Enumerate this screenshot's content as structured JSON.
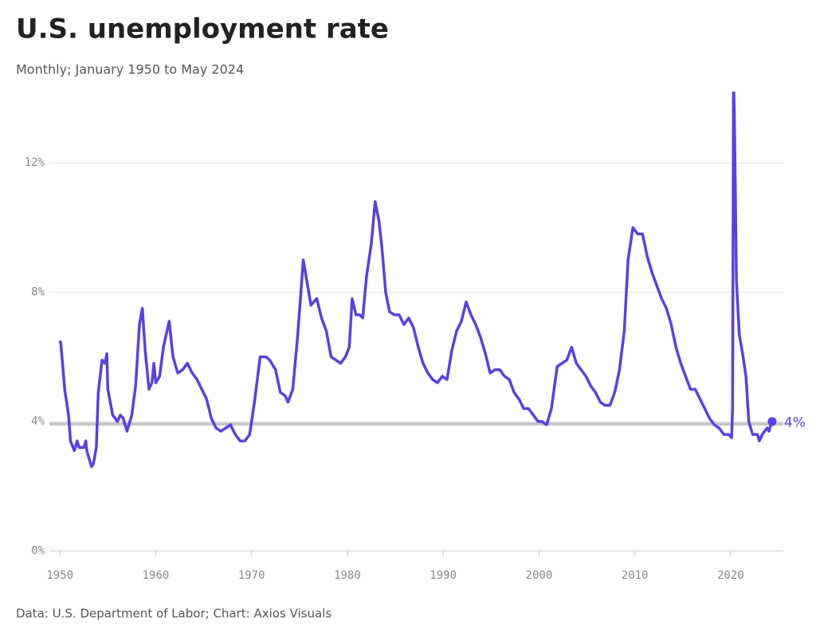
{
  "chart_data": {
    "type": "line",
    "title": "U.S. unemployment rate",
    "subtitle": "Monthly; January 1950 to May 2024",
    "source": "Data: U.S. Department of Labor; Chart: Axios Visuals",
    "end_label": "4%",
    "x": [
      1950.0,
      1950.1,
      1950.5,
      1950.9,
      1951.1,
      1951.5,
      1951.8,
      1952.0,
      1952.5,
      1952.7,
      1952.8,
      1953.0,
      1953.3,
      1953.5,
      1953.8,
      1954.0,
      1954.4,
      1954.7,
      1954.9,
      1955.0,
      1955.5,
      1956.0,
      1956.3,
      1956.6,
      1957.0,
      1957.5,
      1957.9,
      1958.3,
      1958.6,
      1958.9,
      1959.3,
      1959.6,
      1959.8,
      1960.0,
      1960.4,
      1960.8,
      1961.4,
      1961.8,
      1962.3,
      1962.8,
      1963.3,
      1963.8,
      1964.3,
      1964.8,
      1965.3,
      1965.8,
      1966.3,
      1966.8,
      1967.3,
      1967.8,
      1968.3,
      1968.8,
      1969.3,
      1969.8,
      1970.3,
      1970.9,
      1971.5,
      1971.9,
      1972.5,
      1973.0,
      1973.5,
      1973.8,
      1974.3,
      1974.8,
      1975.3,
      1975.4,
      1975.8,
      1976.2,
      1976.8,
      1977.3,
      1977.8,
      1978.3,
      1978.8,
      1979.3,
      1979.8,
      1980.2,
      1980.5,
      1980.9,
      1981.3,
      1981.6,
      1982.0,
      1982.5,
      1982.9,
      1983.3,
      1983.6,
      1984.0,
      1984.4,
      1984.9,
      1985.4,
      1985.9,
      1986.4,
      1986.9,
      1987.4,
      1987.9,
      1988.4,
      1988.9,
      1989.4,
      1989.9,
      1990.4,
      1990.9,
      1991.4,
      1991.9,
      1992.4,
      1992.9,
      1993.4,
      1993.9,
      1994.4,
      1994.9,
      1995.4,
      1995.9,
      1996.4,
      1996.9,
      1997.4,
      1997.9,
      1998.4,
      1998.9,
      1999.4,
      1999.9,
      2000.3,
      2000.8,
      2001.3,
      2001.9,
      2002.4,
      2002.9,
      2003.4,
      2003.9,
      2004.4,
      2004.9,
      2005.4,
      2005.9,
      2006.4,
      2006.9,
      2007.4,
      2007.9,
      2008.4,
      2008.9,
      2009.3,
      2009.8,
      2010.3,
      2010.8,
      2011.3,
      2011.8,
      2012.3,
      2012.8,
      2013.3,
      2013.8,
      2014.3,
      2014.8,
      2015.3,
      2015.8,
      2016.3,
      2016.8,
      2017.3,
      2017.8,
      2018.3,
      2018.8,
      2019.3,
      2019.8,
      2020.1,
      2020.2,
      2020.3,
      2020.4,
      2020.5,
      2020.6,
      2020.9,
      2021.3,
      2021.6,
      2021.9,
      2022.3,
      2022.8,
      2023.0,
      2023.3,
      2023.8,
      2024.0,
      2024.2,
      2024.33
    ],
    "series": [
      {
        "name": "Unemployment rate",
        "color": "#5b3ee6",
        "values": [
          6.5,
          6.4,
          5.0,
          4.2,
          3.4,
          3.1,
          3.4,
          3.2,
          3.2,
          3.4,
          3.1,
          2.9,
          2.6,
          2.7,
          3.2,
          4.9,
          5.9,
          5.8,
          6.1,
          5.0,
          4.2,
          4.0,
          4.2,
          4.1,
          3.7,
          4.2,
          5.1,
          7.0,
          7.5,
          6.2,
          5.0,
          5.2,
          5.8,
          5.2,
          5.4,
          6.3,
          7.1,
          6.0,
          5.5,
          5.6,
          5.8,
          5.5,
          5.3,
          5.0,
          4.7,
          4.1,
          3.8,
          3.7,
          3.8,
          3.9,
          3.6,
          3.4,
          3.4,
          3.6,
          4.6,
          6.0,
          6.0,
          5.9,
          5.6,
          4.9,
          4.8,
          4.6,
          5.0,
          6.6,
          8.6,
          9.0,
          8.3,
          7.6,
          7.8,
          7.2,
          6.8,
          6.0,
          5.9,
          5.8,
          6.0,
          6.3,
          7.8,
          7.3,
          7.3,
          7.2,
          8.5,
          9.5,
          10.8,
          10.2,
          9.4,
          8.0,
          7.4,
          7.3,
          7.3,
          7.0,
          7.2,
          6.9,
          6.3,
          5.8,
          5.5,
          5.3,
          5.2,
          5.4,
          5.3,
          6.2,
          6.8,
          7.1,
          7.7,
          7.3,
          7.0,
          6.6,
          6.1,
          5.5,
          5.6,
          5.6,
          5.4,
          5.3,
          4.9,
          4.7,
          4.4,
          4.4,
          4.2,
          4.0,
          4.0,
          3.9,
          4.4,
          5.7,
          5.8,
          5.9,
          6.3,
          5.8,
          5.6,
          5.4,
          5.1,
          4.9,
          4.6,
          4.5,
          4.5,
          4.9,
          5.6,
          6.8,
          9.0,
          10.0,
          9.8,
          9.8,
          9.1,
          8.6,
          8.2,
          7.8,
          7.5,
          7.0,
          6.3,
          5.8,
          5.4,
          5.0,
          5.0,
          4.7,
          4.4,
          4.1,
          3.9,
          3.8,
          3.6,
          3.6,
          3.5,
          4.4,
          14.8,
          13.2,
          11.0,
          8.4,
          6.7,
          6.0,
          5.4,
          4.0,
          3.6,
          3.6,
          3.4,
          3.6,
          3.8,
          3.7,
          3.9,
          4.0
        ]
      }
    ],
    "xlim": [
      1948.9,
      2025.5
    ],
    "xticks": [
      1950,
      1960,
      1970,
      1980,
      1990,
      2000,
      2010,
      2020
    ],
    "ylim": [
      0,
      14.2
    ],
    "yticks": [
      {
        "value": 0,
        "label": "0%"
      },
      {
        "value": 4,
        "label": "4%"
      },
      {
        "value": 8,
        "label": "8%"
      },
      {
        "value": 12,
        "label": "12%"
      }
    ],
    "grid": true
  }
}
